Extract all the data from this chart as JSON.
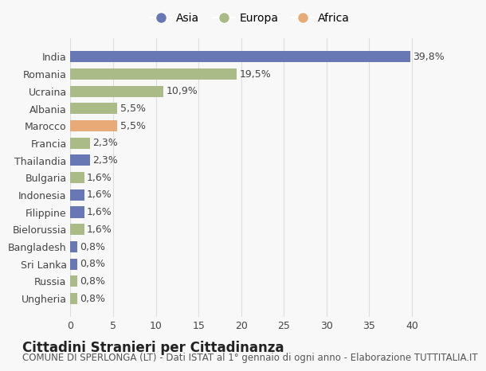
{
  "categories": [
    "India",
    "Romania",
    "Ucraina",
    "Albania",
    "Marocco",
    "Francia",
    "Thailandia",
    "Bulgaria",
    "Indonesia",
    "Filippine",
    "Bielorussia",
    "Bangladesh",
    "Sri Lanka",
    "Russia",
    "Ungheria"
  ],
  "values": [
    39.8,
    19.5,
    10.9,
    5.5,
    5.5,
    2.3,
    2.3,
    1.6,
    1.6,
    1.6,
    1.6,
    0.8,
    0.8,
    0.8,
    0.8
  ],
  "labels": [
    "39,8%",
    "19,5%",
    "10,9%",
    "5,5%",
    "5,5%",
    "2,3%",
    "2,3%",
    "1,6%",
    "1,6%",
    "1,6%",
    "1,6%",
    "0,8%",
    "0,8%",
    "0,8%",
    "0,8%"
  ],
  "continents": [
    "Asia",
    "Europa",
    "Europa",
    "Europa",
    "Africa",
    "Europa",
    "Asia",
    "Europa",
    "Asia",
    "Asia",
    "Europa",
    "Asia",
    "Asia",
    "Europa",
    "Europa"
  ],
  "continent_colors": {
    "Asia": "#6878b4",
    "Europa": "#aabb88",
    "Africa": "#e8aa77"
  },
  "legend_labels": [
    "Asia",
    "Europa",
    "Africa"
  ],
  "legend_colors": [
    "#6878b4",
    "#aabb88",
    "#e8aa77"
  ],
  "title": "Cittadini Stranieri per Cittadinanza",
  "subtitle": "COMUNE DI SPERLONGA (LT) - Dati ISTAT al 1° gennaio di ogni anno - Elaborazione TUTTITALIA.IT",
  "xlim": [
    0,
    42
  ],
  "xticks": [
    0,
    5,
    10,
    15,
    20,
    25,
    30,
    35,
    40
  ],
  "background_color": "#f8f8f8",
  "bar_height": 0.65,
  "label_fontsize": 9,
  "tick_fontsize": 9,
  "title_fontsize": 12,
  "subtitle_fontsize": 8.5
}
